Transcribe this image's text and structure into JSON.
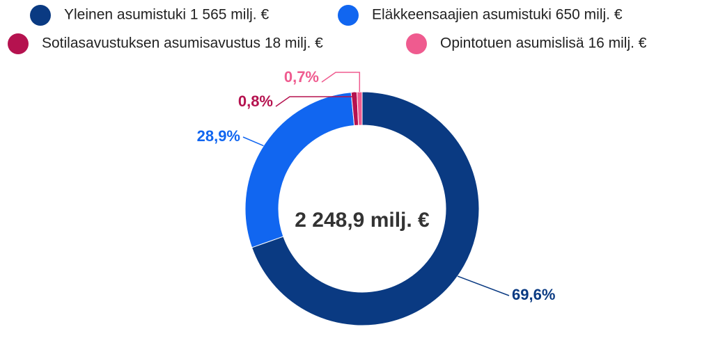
{
  "chart_data": {
    "type": "pie",
    "donut": true,
    "center_label": "2 248,9 milj. €",
    "categories": [
      "Yleinen asumistuki 1 565 milj. €",
      "Eläkkeensaajien asumistuki 650 milj. €",
      "Sotilasavustuksen asumisavustus 18 milj. €",
      "Opintotuen asumislisä 16 milj. €"
    ],
    "values": [
      69.6,
      28.9,
      0.8,
      0.7
    ],
    "value_labels": [
      "69,6%",
      "28,9%",
      "0,8%",
      "0,7%"
    ],
    "colors": [
      "#0a3a82",
      "#1166f0",
      "#b5124f",
      "#ef5b8f"
    ],
    "legend": "top"
  }
}
